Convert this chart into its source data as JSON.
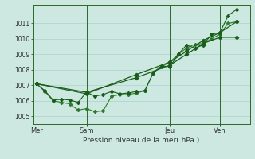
{
  "xlabel": "Pression niveau de la mer( hPa )",
  "background_color": "#cce8e0",
  "grid_color": "#a8d4cc",
  "line_color_dark": "#1a5c1a",
  "line_color_mid": "#2d7a2d",
  "ylim": [
    1004.5,
    1012.2
  ],
  "yticks": [
    1005,
    1006,
    1007,
    1008,
    1009,
    1010,
    1011
  ],
  "xtick_labels": [
    "Mer",
    "Sam",
    "Jeu",
    "Ven"
  ],
  "xtick_positions": [
    0,
    3,
    8,
    11
  ],
  "xlim": [
    -0.2,
    12.8
  ],
  "series_wavy": {
    "x": [
      0,
      0.5,
      1.0,
      1.5,
      2.0,
      2.5,
      3.0,
      3.5,
      4.0,
      4.5,
      5.0,
      5.5,
      6.0,
      6.5,
      7.0,
      7.5,
      8.0,
      8.5,
      9.0,
      9.5,
      10.0,
      10.5,
      11.0,
      11.5,
      12.0
    ],
    "y": [
      1007.1,
      1006.6,
      1006.0,
      1005.9,
      1005.8,
      1005.4,
      1005.5,
      1005.3,
      1005.35,
      1006.3,
      1006.4,
      1006.4,
      1006.5,
      1006.65,
      1007.8,
      1008.2,
      1008.5,
      1009.0,
      1009.4,
      1009.65,
      1009.7,
      1010.0,
      1010.3,
      1011.0,
      1011.1
    ]
  },
  "series_zigzag": {
    "x": [
      0,
      0.5,
      1.0,
      1.5,
      2.0,
      2.5,
      3.0,
      3.5,
      4.0,
      4.5,
      5.0,
      5.5,
      6.0,
      6.5,
      7.0,
      7.5,
      8.0,
      8.5,
      9.0,
      9.5,
      10.0,
      10.5,
      11.0,
      11.5,
      12.0
    ],
    "y": [
      1007.1,
      1006.65,
      1006.05,
      1006.1,
      1006.05,
      1005.9,
      1006.55,
      1006.3,
      1006.4,
      1006.6,
      1006.45,
      1006.5,
      1006.6,
      1006.65,
      1007.8,
      1008.25,
      1008.2,
      1009.0,
      1009.6,
      1009.4,
      1009.6,
      1010.3,
      1010.4,
      1011.5,
      1011.9
    ]
  },
  "series_trend1": {
    "x": [
      0,
      3,
      6,
      8,
      9,
      10,
      11,
      12
    ],
    "y": [
      1007.1,
      1006.55,
      1007.5,
      1008.3,
      1009.0,
      1009.7,
      1010.1,
      1010.1
    ]
  },
  "series_trend2": {
    "x": [
      0,
      3,
      6,
      8,
      9,
      10,
      11,
      12
    ],
    "y": [
      1007.1,
      1006.45,
      1007.7,
      1008.5,
      1009.2,
      1009.9,
      1010.4,
      1011.1
    ]
  }
}
